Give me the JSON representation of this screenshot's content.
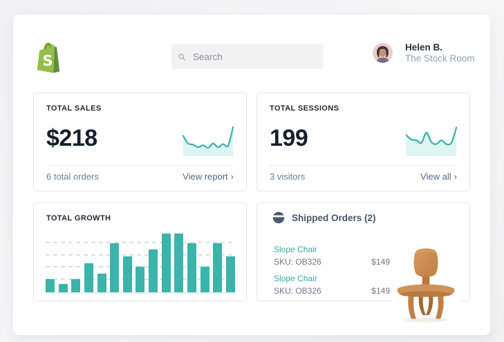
{
  "header": {
    "logo_name": "Shopify",
    "search": {
      "placeholder": "Search"
    },
    "user": {
      "name": "Helen B.",
      "store": "The Stock Room"
    }
  },
  "cards": {
    "sales": {
      "title": "TOTAL SALES",
      "value": "$218",
      "subtext": "6 total orders",
      "link": "View report",
      "chevron": "›"
    },
    "sessions": {
      "title": "TOTAL SESSIONS",
      "value": "199",
      "subtext": "3 visitors",
      "link": "View all",
      "chevron": "›"
    },
    "growth": {
      "title": "TOTAL GROWTH"
    },
    "shipped": {
      "title": "Shipped Orders (2)",
      "orders": [
        {
          "name": "Slope Chair",
          "sku": "SKU: OB326",
          "price": "$149"
        },
        {
          "name": "Slope Chair",
          "sku": "SKU: OB326",
          "price": "$149"
        }
      ]
    }
  },
  "chart_data": [
    {
      "type": "line",
      "name": "total-sales-sparkline",
      "title": "TOTAL SALES",
      "values": [
        32,
        20,
        18,
        14,
        17,
        13,
        20,
        14,
        19,
        16,
        46
      ],
      "ylim": [
        0,
        50
      ],
      "color": "#3bb4ab",
      "fill": "#def4f1",
      "grid": false,
      "axes": false
    },
    {
      "type": "line",
      "name": "total-sessions-sparkline",
      "title": "TOTAL SESSIONS",
      "values": [
        33,
        26,
        25,
        21,
        37,
        22,
        19,
        25,
        19,
        21,
        45
      ],
      "ylim": [
        0,
        50
      ],
      "color": "#3bb4ab",
      "fill": "#def4f1",
      "grid": false,
      "axes": false
    },
    {
      "type": "bar",
      "name": "total-growth-bars",
      "title": "TOTAL GROWTH",
      "values": [
        22,
        14,
        22,
        50,
        32,
        83,
        61,
        43,
        73,
        100,
        100,
        83,
        43,
        83,
        61
      ],
      "ylim": [
        0,
        100
      ],
      "color": "#3bb4ab",
      "grid": "dashed-horizontal",
      "axes": false
    }
  ],
  "colors": {
    "accent_teal": "#3bb4ab",
    "teal_fill": "#def4f1",
    "teal_text": "#35aaa1",
    "shopify_green": "#95bf47",
    "shopify_green_dark": "#5e8e3e",
    "text_dark": "#16202a",
    "text_slate": "#44566b",
    "text_gray": "#6b7886",
    "text_lightblue": "#8da1b5",
    "card_border": "#e4e6e8"
  },
  "icons": {
    "search": "magnifier-icon",
    "shipped": "shipped-box-icon",
    "chevron": "›"
  }
}
